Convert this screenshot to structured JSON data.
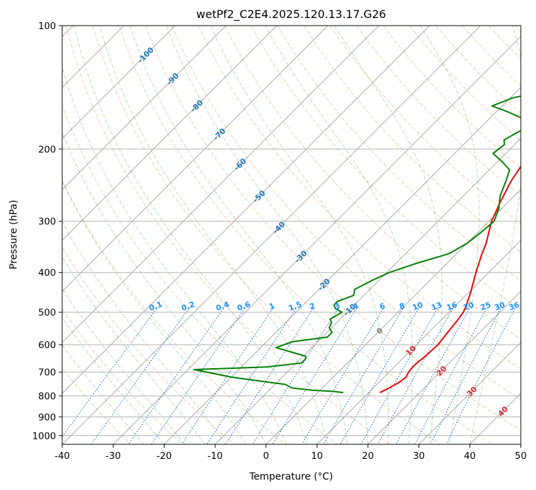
{
  "chart_data": {
    "type": "line",
    "title": "wetPf2_C2E4.2025.120.13.17.G26",
    "xlabel": "Temperature (°C)",
    "ylabel": "Pressure (hPa)",
    "xlim": [
      -40,
      50
    ],
    "ylim": [
      1050,
      100
    ],
    "y_scale": "log",
    "grid": true,
    "x_ticks": [
      -40,
      -30,
      -20,
      -10,
      0,
      10,
      20,
      30,
      40,
      50
    ],
    "y_ticks": [
      100,
      200,
      300,
      400,
      500,
      600,
      700,
      800,
      900,
      1000
    ],
    "colors": {
      "temperature": "#ee0000",
      "dewpoint": "#008000",
      "dry_adiabats": "#d2691e",
      "moist_adiabats": "#2ca02c",
      "mixing_ratio": "#1f77d4",
      "isotherms": "#7f7f7f",
      "isotherm_labels_negative": "#1f77b4",
      "isotherm_labels_positive": "#d62728",
      "isotherm_label_zero": "#7f7f7f",
      "mixing_labels": "#1e90ff"
    },
    "series": [
      {
        "key": "temperature",
        "p": [
          785,
          770,
          760,
          740,
          720,
          700,
          680,
          660,
          640,
          600,
          560,
          520,
          500,
          480,
          450,
          400,
          360,
          340,
          300,
          270,
          240,
          220,
          215,
          210,
          200,
          190,
          180,
          170,
          160,
          150,
          140,
          130,
          125,
          120,
          115,
          110,
          105,
          100
        ],
        "t": [
          12.2,
          12.9,
          13.3,
          14.0,
          14.3,
          13.8,
          13.6,
          13.7,
          14.0,
          14.2,
          13.7,
          13.2,
          12.8,
          12.0,
          10.5,
          7.5,
          5.0,
          3.8,
          0.5,
          -1.5,
          -3.5,
          -4.5,
          -4.8,
          -4.0,
          -1.2,
          2.0,
          5.0,
          7.5,
          9.5,
          10.0,
          9.8,
          9.8,
          10.2,
          12.0,
          13.2,
          14.0,
          15.5,
          19.0
        ]
      },
      {
        "key": "dewpoint",
        "p": [
          785,
          780,
          775,
          765,
          750,
          740,
          720,
          690,
          680,
          665,
          650,
          640,
          630,
          610,
          590,
          575,
          560,
          545,
          530,
          520,
          500,
          490,
          480,
          470,
          455,
          440,
          420,
          400,
          380,
          360,
          340,
          320,
          300,
          280,
          260,
          240,
          225,
          215,
          205,
          195,
          190,
          180,
          170,
          162,
          157,
          150,
          140,
          130,
          125,
          120,
          115,
          110,
          105,
          100
        ],
        "t": [
          5.0,
          2.8,
          -1.5,
          -6.0,
          -8.0,
          -12.0,
          -20.0,
          -28.8,
          -15.0,
          -9.0,
          -9.0,
          -9.5,
          -12.0,
          -17.0,
          -15.0,
          -9.0,
          -9.0,
          -10.5,
          -11.0,
          -12.0,
          -11.0,
          -13.0,
          -14.0,
          -14.0,
          -12.0,
          -13.0,
          -11.5,
          -9.5,
          -6.0,
          -1.5,
          0.0,
          0.6,
          1.0,
          -0.5,
          -2.8,
          -4.5,
          -6.0,
          -9.0,
          -12.5,
          -12.0,
          -13.0,
          -11.5,
          -12.5,
          -18.0,
          -22.0,
          -19.5,
          -10.0,
          -5.5,
          -7.0,
          -4.8,
          -7.5,
          -6.0,
          -3.8,
          -1.0
        ]
      }
    ],
    "isotherm_labels": [
      {
        "text": "-100",
        "t": -100,
        "p": 118
      },
      {
        "text": "-90",
        "t": -90,
        "p": 135
      },
      {
        "text": "-80",
        "t": -80,
        "p": 157
      },
      {
        "text": "-70",
        "t": -70,
        "p": 184
      },
      {
        "text": "-60",
        "t": -60,
        "p": 218
      },
      {
        "text": "-50",
        "t": -50,
        "p": 261
      },
      {
        "text": "-40",
        "t": -40,
        "p": 311
      },
      {
        "text": "-30",
        "t": -30,
        "p": 366
      },
      {
        "text": "-20",
        "t": -20,
        "p": 428
      },
      {
        "text": "-10",
        "t": -10,
        "p": 493
      },
      {
        "text": "0",
        "t": 0,
        "p": 555
      },
      {
        "text": "10",
        "t": 10,
        "p": 620
      },
      {
        "text": "20",
        "t": 20,
        "p": 695
      },
      {
        "text": "30",
        "t": 30,
        "p": 780
      },
      {
        "text": "40",
        "t": 40,
        "p": 872
      }
    ],
    "mixing_ratios": [
      "0.1",
      "0.2",
      "0.4",
      "0.6",
      "1",
      "1.5",
      "2",
      "3",
      "4",
      "6",
      "8",
      "10",
      "13",
      "16",
      "20",
      "25",
      "30",
      "36"
    ]
  }
}
